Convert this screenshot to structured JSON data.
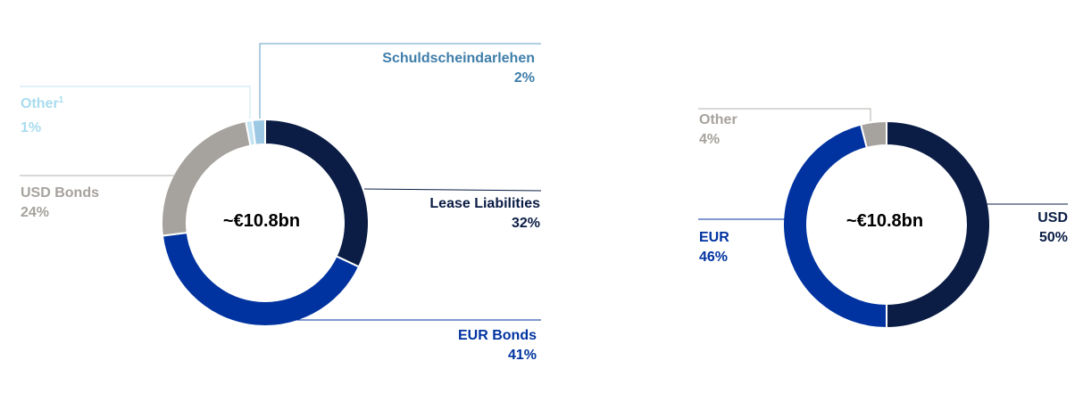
{
  "chart_data": [
    {
      "type": "pie",
      "style": "donut",
      "center_label": "~€10.8bn",
      "slices": [
        {
          "label": "Lease Liabilities",
          "value": 32,
          "value_label": "32%",
          "color": "#0b1d45"
        },
        {
          "label": "EUR Bonds",
          "value": 41,
          "value_label": "41%",
          "color": "#0033a0"
        },
        {
          "label": "USD Bonds",
          "value": 24,
          "value_label": "24%",
          "color": "#a6a29d"
        },
        {
          "label": "Other",
          "footnote": "1",
          "value": 1,
          "value_label": "1%",
          "color": "#c3e4f2"
        },
        {
          "label": "Schuldscheindarlehen",
          "value": 2,
          "value_label": "2%",
          "color": "#9cc8e4"
        }
      ],
      "label_colors": {
        "Lease Liabilities": "#0b1d45",
        "EUR Bonds": "#0033a0",
        "USD Bonds": "#a6a29d",
        "Other": "#a9dcef",
        "Schuldscheindarlehen": "#3f7eaa"
      }
    },
    {
      "type": "pie",
      "style": "donut",
      "center_label": "~€10.8bn",
      "slices": [
        {
          "label": "USD",
          "value": 50,
          "value_label": "50%",
          "color": "#0b1d45"
        },
        {
          "label": "EUR",
          "value": 46,
          "value_label": "46%",
          "color": "#0033a0"
        },
        {
          "label": "Other",
          "value": 4,
          "value_label": "4%",
          "color": "#a6a29d"
        }
      ],
      "label_colors": {
        "USD": "#0b1d45",
        "EUR": "#0033a0",
        "Other": "#a6a29d"
      }
    }
  ]
}
